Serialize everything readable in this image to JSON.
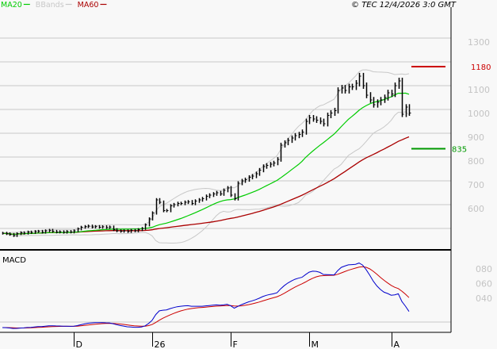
{
  "chart_data": {
    "type": "line",
    "title": "",
    "copyright": "© TEC 12/4/2026 3:0 GMT",
    "legend": [
      {
        "name": "MA20",
        "color": "#00cc00"
      },
      {
        "name": "BBands",
        "color": "#c8c8c8"
      },
      {
        "name": "MA60",
        "color": "#aa0000"
      }
    ],
    "legend_placement": "top-left",
    "price_axis": {
      "ticks": [
        "1300",
        "1100",
        "1000",
        "900",
        "800",
        "700",
        "600"
      ],
      "tick_values": [
        1300,
        1100,
        1000,
        900,
        800,
        700,
        600
      ],
      "gridlines": [
        1300,
        1200,
        1100,
        1000,
        900,
        800,
        700,
        600,
        500
      ],
      "ylim": [
        500,
        1310
      ]
    },
    "levels": [
      {
        "label": "1180",
        "value": 1180,
        "color": "#cc0000"
      },
      {
        "label": "835",
        "value": 835,
        "color": "#009900"
      }
    ],
    "x_ticks": [
      {
        "label": "D",
        "index": 20
      },
      {
        "label": "26",
        "index": 42
      },
      {
        "label": "F",
        "index": 64
      },
      {
        "label": "M",
        "index": 86
      },
      {
        "label": "A",
        "index": 109
      }
    ],
    "closes": [
      480,
      478,
      475,
      470,
      478,
      482,
      480,
      485,
      483,
      487,
      488,
      484,
      490,
      492,
      488,
      485,
      486,
      484,
      487,
      485,
      490,
      498,
      505,
      508,
      510,
      506,
      508,
      505,
      507,
      504,
      506,
      495,
      490,
      488,
      490,
      487,
      492,
      490,
      495,
      500,
      515,
      540,
      565,
      620,
      610,
      575,
      575,
      595,
      600,
      605,
      605,
      610,
      612,
      605,
      615,
      620,
      625,
      635,
      640,
      645,
      650,
      645,
      660,
      670,
      640,
      625,
      690,
      700,
      705,
      715,
      720,
      730,
      745,
      760,
      765,
      770,
      775,
      790,
      850,
      860,
      870,
      880,
      890,
      895,
      905,
      950,
      965,
      960,
      955,
      950,
      940,
      975,
      985,
      995,
      1080,
      1090,
      1080,
      1095,
      1095,
      1110,
      1140,
      1100,
      1060,
      1040,
      1020,
      1030,
      1040,
      1050,
      1070,
      1065,
      1100,
      1120,
      980,
      1010,
      985
    ],
    "macd": {
      "label": "MACD",
      "ticks": [
        "080",
        "060",
        "040"
      ],
      "tick_values": [
        80,
        60,
        40
      ],
      "line_color": "#0000cc",
      "signal_color": "#cc0000"
    }
  }
}
